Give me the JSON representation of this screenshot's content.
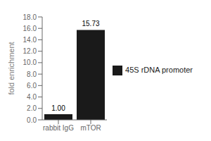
{
  "chart_data": {
    "type": "bar",
    "categories": [
      "rabbit IgG",
      "mTOR"
    ],
    "series": [
      {
        "name": "45S rDNA promoter",
        "color": "#1a1a1a",
        "values": [
          1.0,
          15.73
        ],
        "value_labels": [
          "1.00",
          "15.73"
        ]
      }
    ],
    "ylabel": "fold enrichment",
    "ylim": [
      0,
      18.0
    ],
    "yticks": [
      {
        "value": 0.0,
        "label": "0.0"
      },
      {
        "value": 2.0,
        "label": "2.0"
      },
      {
        "value": 4.0,
        "label": "4.0"
      },
      {
        "value": 6.0,
        "label": "6.0"
      },
      {
        "value": 8.0,
        "label": "8.0"
      },
      {
        "value": 10.0,
        "label": "10.0"
      },
      {
        "value": 12.0,
        "label": "12.0"
      },
      {
        "value": 14.0,
        "label": "14.0"
      },
      {
        "value": 16.0,
        "label": "16.0"
      },
      {
        "value": 18.0,
        "label": "18.0"
      }
    ],
    "data_labels": true,
    "legend": "right",
    "grid": false
  }
}
